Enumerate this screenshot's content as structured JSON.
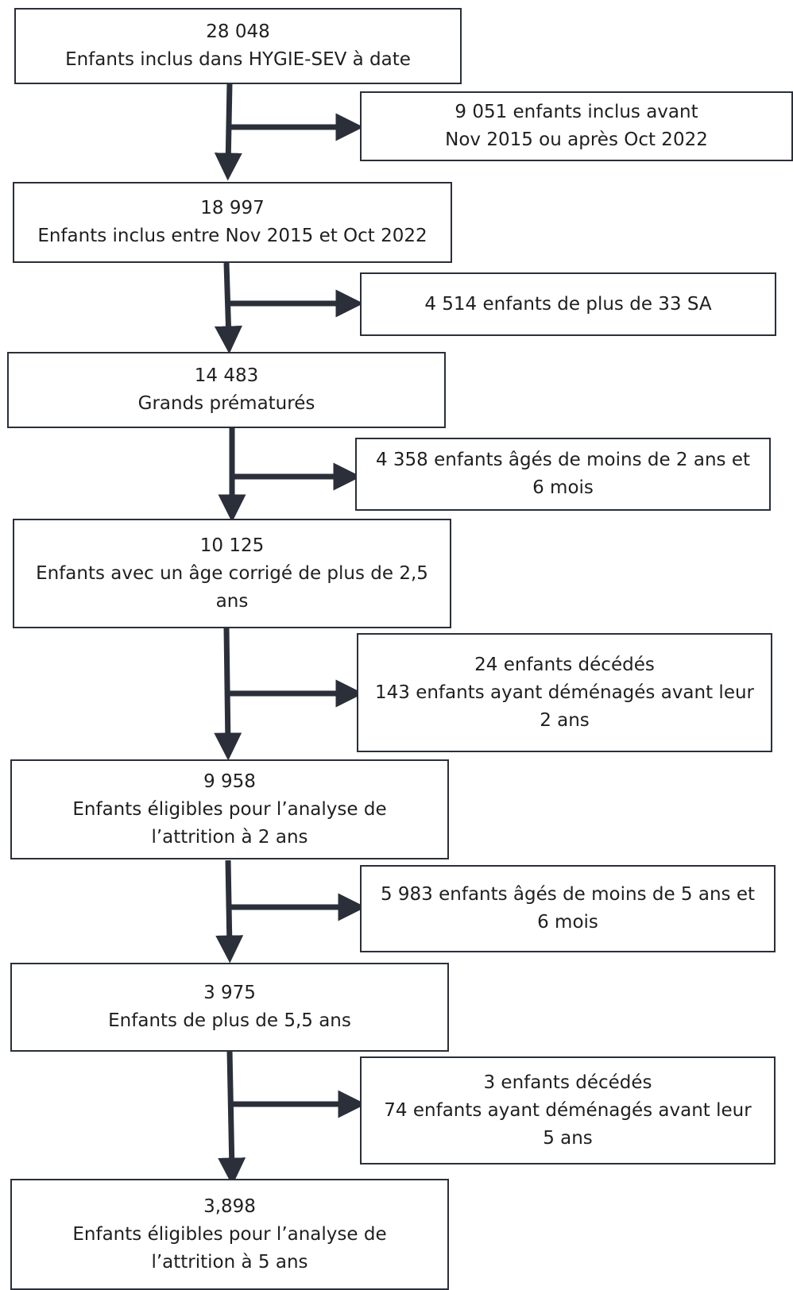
{
  "main_flow": [
    {
      "count": "28 048",
      "label": "Enfants inclus dans HYGIE-SEV à date"
    },
    {
      "count": "18 997",
      "label": "Enfants inclus entre Nov 2015 et Oct 2022"
    },
    {
      "count": "14 483",
      "label": "Grands prématurés"
    },
    {
      "count": "10 125",
      "label": "Enfants avec un âge corrigé de plus de 2,5",
      "label2": "ans"
    },
    {
      "count": "9 958",
      "label": "Enfants éligibles pour l’analyse de",
      "label2": "l’attrition à 2 ans"
    },
    {
      "count": "3 975",
      "label": "Enfants de plus de 5,5 ans"
    },
    {
      "count": "3,898",
      "label": "Enfants éligibles pour l’analyse de",
      "label2": "l’attrition à 5 ans"
    }
  ],
  "exclusions": [
    {
      "line1": "9 051 enfants inclus avant",
      "line2": "Nov 2015 ou après Oct 2022"
    },
    {
      "line1": "4 514 enfants de plus de 33 SA"
    },
    {
      "line1": "4 358 enfants âgés de moins de 2 ans et",
      "line2": "6 mois"
    },
    {
      "line1": "24 enfants décédés",
      "line2": "143 enfants ayant déménagés avant leur",
      "line3": "2 ans"
    },
    {
      "line1": "5 983 enfants âgés de moins de 5 ans et",
      "line2": "6 mois"
    },
    {
      "line1": "3 enfants décédés",
      "line2": "74 enfants ayant déménagés avant leur",
      "line3": "5 ans"
    }
  ],
  "colors": {
    "arrow": "#2a2f3a",
    "border": "#2a2f3a"
  }
}
